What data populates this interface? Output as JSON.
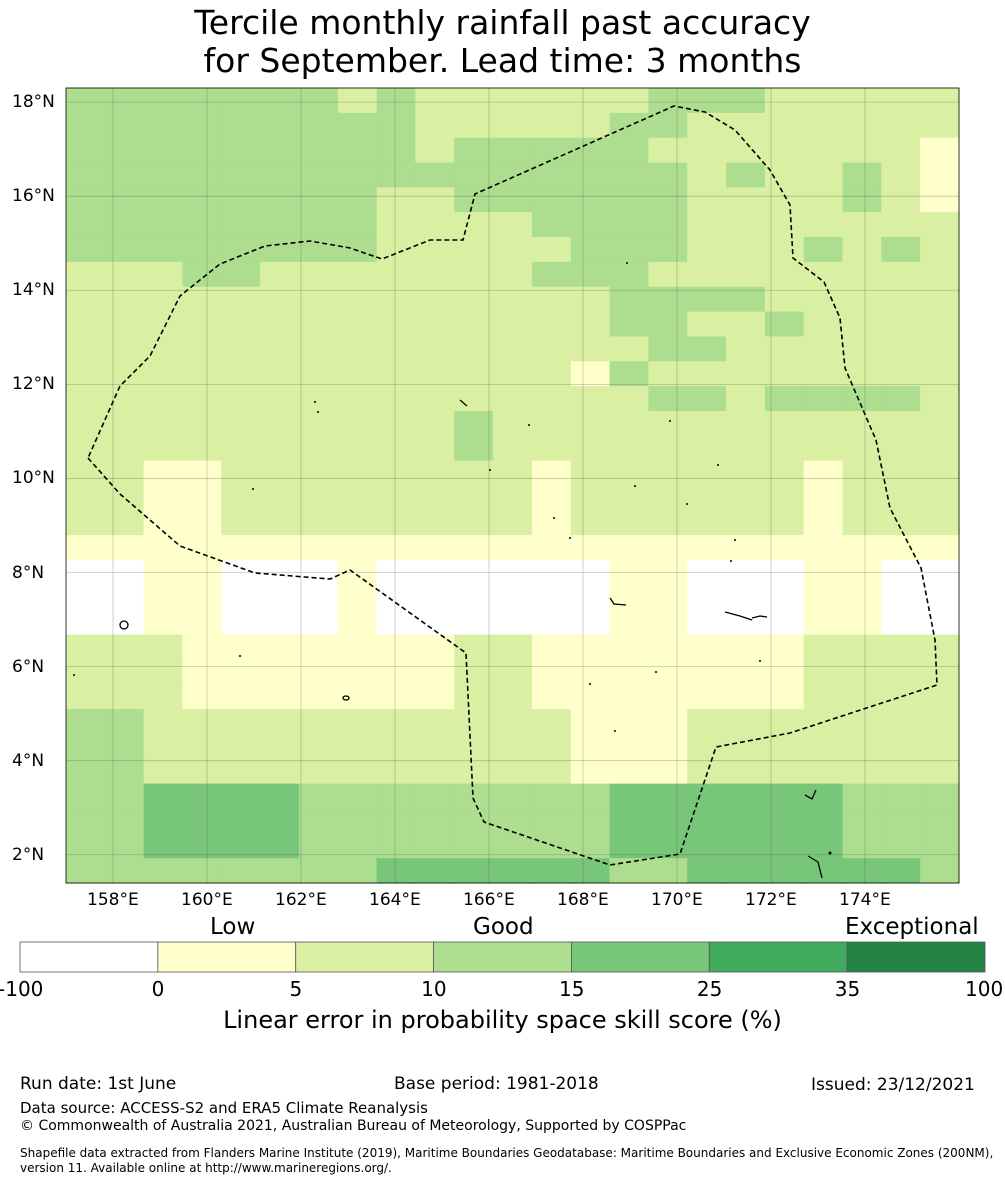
{
  "title": {
    "line1": "Tercile monthly rainfall past accuracy",
    "line2": "for September. Lead time: 3 months"
  },
  "map": {
    "lon_range": [
      157,
      176
    ],
    "lat_range": [
      1.4,
      18.3
    ],
    "lat_ticks": [
      "18°N",
      "16°N",
      "14°N",
      "12°N",
      "10°N",
      "8°N",
      "6°N",
      "4°N",
      "2°N"
    ],
    "lon_ticks": [
      "158°E",
      "160°E",
      "162°E",
      "164°E",
      "166°E",
      "168°E",
      "170°E",
      "172°E",
      "174°E"
    ],
    "grid": true,
    "boundary": "dashed EEZ outline"
  },
  "colorbar": {
    "categories": [
      "Low",
      "Good",
      "Exceptional"
    ],
    "tick_labels": [
      "-100",
      "0",
      "5",
      "10",
      "15",
      "25",
      "35",
      "100"
    ],
    "colors": [
      "#ffffff",
      "#ffffcc",
      "#d9f0a3",
      "#addd8e",
      "#78c679",
      "#41ab5d",
      "#238443"
    ],
    "title": "Linear error in probability space skill score (%)"
  },
  "footer": {
    "run_date": "Run date: 1st June",
    "base_period": "Base period: 1981-2018",
    "issued": "Issued: 23/12/2021",
    "data_source": "Data source: ACCESS-S2 and ERA5 Climate Reanalysis",
    "copyright": "© Commonwealth of Australia 2021, Australian Bureau of Meteorology, Supported by COSPPac",
    "shapefile": "Shapefile data extracted from Flanders Marine Institute (2019), Maritime Boundaries Geodatabase: Maritime Boundaries and Exclusive Economic Zones (200NM), version 11. Available online at http://www.marineregions.org/."
  }
}
